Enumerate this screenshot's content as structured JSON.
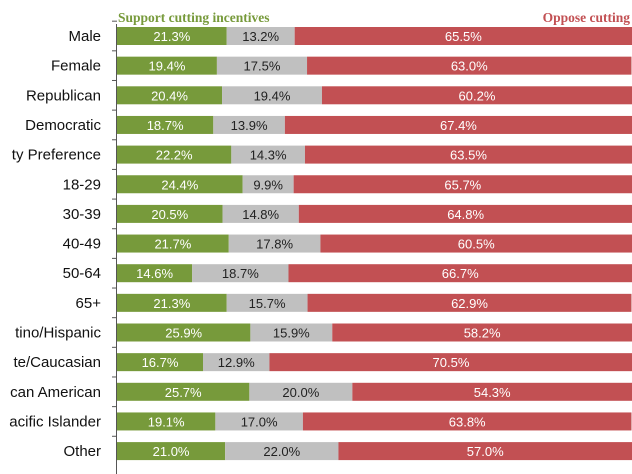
{
  "chart_data": {
    "type": "bar",
    "orientation": "horizontal",
    "stacked": true,
    "categories": [
      "Male",
      "Female",
      "Republican",
      "Democratic",
      "ty Preference",
      "18-29",
      "30-39",
      "40-49",
      "50-64",
      "65+",
      "tino/Hispanic",
      "te/Caucasian",
      "can American",
      "acific Islander",
      "Other"
    ],
    "series": [
      {
        "name": "Support cutting incentives",
        "color": "#779a3b",
        "values": [
          21.3,
          19.4,
          20.4,
          18.7,
          22.2,
          24.4,
          20.5,
          21.7,
          14.6,
          21.3,
          25.9,
          16.7,
          25.7,
          19.1,
          21.0
        ],
        "labels": [
          "21.3%",
          "19.4%",
          "20.4%",
          "18.7%",
          "22.2%",
          "24.4%",
          "20.5%",
          "21.7%",
          "14.6%",
          "21.3%",
          "25.9%",
          "16.7%",
          "25.7%",
          "19.1%",
          "21.0%"
        ]
      },
      {
        "color": "#c0c0c0",
        "values": [
          13.2,
          17.5,
          19.4,
          13.9,
          14.3,
          9.9,
          14.8,
          17.8,
          18.7,
          15.7,
          15.9,
          12.9,
          20.0,
          17.0,
          22.0
        ],
        "labels": [
          "13.2%",
          "17.5%",
          "19.4%",
          "13.9%",
          "14.3%",
          "9.9%",
          "14.8%",
          "17.8%",
          "18.7%",
          "15.7%",
          "15.9%",
          "12.9%",
          "20.0%",
          "17.0%",
          "22.0%"
        ]
      },
      {
        "name": "Oppose cutting",
        "color": "#c25053",
        "values": [
          65.5,
          63.0,
          60.2,
          67.4,
          63.5,
          65.7,
          64.8,
          60.5,
          66.7,
          62.9,
          58.2,
          70.5,
          54.3,
          63.8,
          57.0
        ],
        "labels": [
          "65.5%",
          "63.0%",
          "60.2%",
          "67.4%",
          "63.5%",
          "65.7%",
          "64.8%",
          "60.5%",
          "66.7%",
          "62.9%",
          "58.2%",
          "70.5%",
          "54.3%",
          "63.8%",
          "57.0%"
        ]
      }
    ],
    "xlim": [
      0,
      100
    ],
    "grid": false,
    "legend": "top"
  }
}
